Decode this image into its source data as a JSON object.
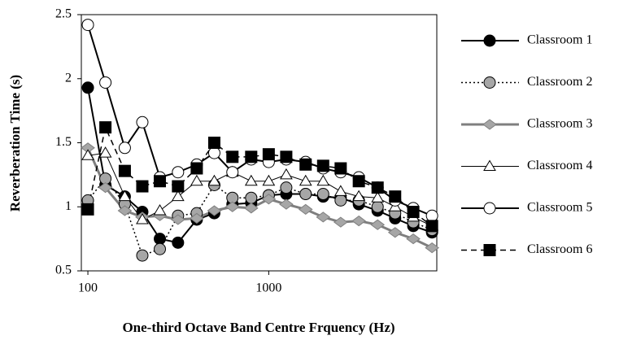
{
  "chart_data": {
    "type": "line",
    "x_label": "One-third Octave Band Centre Frquency (Hz)",
    "y_label": "Reverberation Time (s)",
    "x": [
      100,
      125,
      160,
      200,
      250,
      315,
      400,
      500,
      630,
      800,
      1000,
      1250,
      1600,
      2000,
      2500,
      3150,
      4000,
      5000,
      6300,
      8000
    ],
    "xlim": [
      92,
      8500
    ],
    "xticks": [
      100,
      1000
    ],
    "xscale": "log",
    "ylim": [
      0.5,
      2.5
    ],
    "yticks": [
      0.5,
      1,
      1.5,
      2,
      2.5
    ],
    "series": [
      {
        "name": "Classroom 1",
        "color": "#000000",
        "marker": "circle",
        "marker_fill": "#000000",
        "dash": "solid",
        "width": 2,
        "values": [
          1.93,
          1.17,
          1.08,
          0.96,
          0.75,
          0.72,
          0.9,
          0.95,
          1.02,
          1.03,
          1.09,
          1.1,
          1.1,
          1.08,
          1.07,
          1.02,
          0.97,
          0.91,
          0.85,
          0.8
        ]
      },
      {
        "name": "Classroom 2",
        "color": "#000000",
        "marker": "circle",
        "marker_fill": "#a6a6a6",
        "dash": "dotted",
        "width": 1.5,
        "values": [
          1.05,
          1.22,
          1.02,
          0.62,
          0.67,
          0.93,
          0.95,
          1.17,
          1.07,
          1.07,
          1.09,
          1.15,
          1.1,
          1.1,
          1.05,
          1.05,
          1.0,
          0.95,
          0.88,
          0.82
        ]
      },
      {
        "name": "Classroom 3",
        "color": "#7f7f7f",
        "marker": "diamond",
        "marker_fill": "#a6a6a6",
        "dash": "solid",
        "width": 3,
        "values": [
          1.46,
          1.15,
          0.97,
          0.92,
          0.93,
          0.9,
          0.91,
          0.97,
          1.0,
          0.99,
          1.06,
          1.02,
          0.98,
          0.92,
          0.88,
          0.89,
          0.86,
          0.8,
          0.75,
          0.68
        ]
      },
      {
        "name": "Classroom 4",
        "color": "#000000",
        "marker": "triangle",
        "marker_fill": "#ffffff",
        "dash": "solid",
        "width": 1,
        "values": [
          1.4,
          1.42,
          1.08,
          0.9,
          0.97,
          1.08,
          1.2,
          1.2,
          1.27,
          1.2,
          1.2,
          1.25,
          1.2,
          1.2,
          1.12,
          1.08,
          1.07,
          1.0,
          0.92,
          0.85
        ]
      },
      {
        "name": "Classroom 5",
        "color": "#000000",
        "marker": "circle",
        "marker_fill": "#ffffff",
        "dash": "solid",
        "width": 2,
        "values": [
          2.42,
          1.97,
          1.46,
          1.66,
          1.23,
          1.27,
          1.33,
          1.42,
          1.27,
          1.37,
          1.35,
          1.37,
          1.35,
          1.3,
          1.27,
          1.23,
          1.15,
          1.05,
          0.99,
          0.93
        ]
      },
      {
        "name": "Classroom 6",
        "color": "#000000",
        "marker": "square",
        "marker_fill": "#000000",
        "dash": "dashed",
        "width": 1.5,
        "values": [
          0.98,
          1.62,
          1.28,
          1.16,
          1.2,
          1.16,
          1.3,
          1.5,
          1.39,
          1.39,
          1.41,
          1.39,
          1.33,
          1.32,
          1.3,
          1.2,
          1.15,
          1.08,
          0.96,
          0.85
        ]
      }
    ]
  }
}
